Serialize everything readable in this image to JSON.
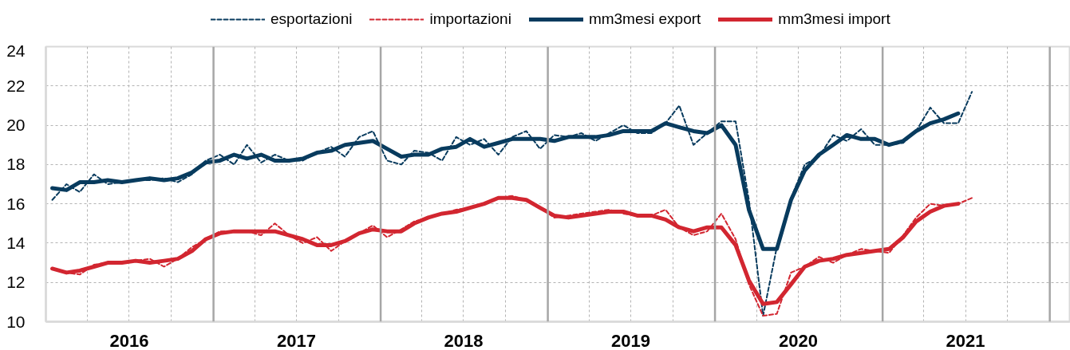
{
  "chart_data": {
    "type": "line",
    "x": [
      "2016-01-15",
      "2016-02-15",
      "2016-03-15",
      "2016-04-15",
      "2016-05-15",
      "2016-06-15",
      "2016-07-15",
      "2016-08-15",
      "2016-09-15",
      "2016-10-15",
      "2016-11-15",
      "2016-12-15",
      "2017-01-15",
      "2017-02-15",
      "2017-03-15",
      "2017-04-15",
      "2017-05-15",
      "2017-06-15",
      "2017-07-15",
      "2017-08-15",
      "2017-09-15",
      "2017-10-15",
      "2017-11-15",
      "2017-12-15",
      "2018-01-15",
      "2018-02-15",
      "2018-03-15",
      "2018-04-15",
      "2018-05-15",
      "2018-06-15",
      "2018-07-15",
      "2018-08-15",
      "2018-09-15",
      "2018-10-15",
      "2018-11-15",
      "2018-12-15",
      "2019-01-15",
      "2019-02-15",
      "2019-03-15",
      "2019-04-15",
      "2019-05-15",
      "2019-06-15",
      "2019-07-15",
      "2019-08-15",
      "2019-09-15",
      "2019-10-15",
      "2019-11-15",
      "2019-12-15",
      "2020-01-15",
      "2020-02-15",
      "2020-03-15",
      "2020-04-15",
      "2020-05-15",
      "2020-06-15",
      "2020-07-15",
      "2020-08-15",
      "2020-09-15",
      "2020-10-15",
      "2020-11-15",
      "2020-12-15",
      "2021-01-15",
      "2021-02-15",
      "2021-03-15",
      "2021-04-15",
      "2021-05-15",
      "2021-06-15",
      "2021-07-15"
    ],
    "series": [
      {
        "name": "esportazioni",
        "color": "#083b5e",
        "line_style": "dashed",
        "values": [
          16.2,
          17.0,
          16.6,
          17.5,
          17.0,
          17.1,
          17.2,
          17.2,
          17.3,
          17.1,
          17.5,
          18.2,
          18.5,
          18.0,
          19.0,
          18.1,
          18.5,
          18.2,
          18.2,
          18.6,
          18.9,
          18.4,
          19.4,
          19.7,
          18.2,
          18.0,
          18.7,
          18.6,
          18.2,
          19.4,
          19.0,
          19.3,
          18.5,
          19.4,
          19.7,
          18.8,
          19.5,
          19.4,
          19.6,
          19.2,
          19.6,
          20.0,
          19.6,
          19.6,
          20.1,
          21.0,
          19.0,
          19.6,
          20.2,
          20.2,
          16.2,
          10.3,
          13.8,
          16.3,
          18.0,
          18.4,
          19.5,
          19.2,
          19.8,
          19.0,
          19.0,
          19.1,
          19.7,
          20.9,
          20.1,
          20.1,
          21.7
        ]
      },
      {
        "name": "importazioni",
        "color": "#d22630",
        "line_style": "dashed",
        "values": [
          12.7,
          12.5,
          12.4,
          12.9,
          13.0,
          13.0,
          13.1,
          13.2,
          12.8,
          13.2,
          13.8,
          14.2,
          14.6,
          14.6,
          14.6,
          14.4,
          15.0,
          14.4,
          14.0,
          14.3,
          13.6,
          14.1,
          14.5,
          14.9,
          14.3,
          14.7,
          15.1,
          15.3,
          15.5,
          15.7,
          15.8,
          16.0,
          16.3,
          16.4,
          16.2,
          15.8,
          15.3,
          15.4,
          15.5,
          15.6,
          15.7,
          15.5,
          15.4,
          15.4,
          15.7,
          14.8,
          14.4,
          14.6,
          15.5,
          14.2,
          11.9,
          10.3,
          10.4,
          12.5,
          12.8,
          13.3,
          13.0,
          13.4,
          13.7,
          13.6,
          13.5,
          14.4,
          15.3,
          16.0,
          15.9,
          16.0,
          16.3
        ]
      },
      {
        "name": "mm3mesi export",
        "color": "#083b5e",
        "line_style": "solid",
        "values": [
          16.8,
          16.7,
          17.1,
          17.1,
          17.2,
          17.1,
          17.2,
          17.3,
          17.2,
          17.3,
          17.6,
          18.1,
          18.2,
          18.5,
          18.3,
          18.5,
          18.2,
          18.2,
          18.3,
          18.6,
          18.7,
          19.0,
          19.1,
          19.2,
          18.8,
          18.4,
          18.5,
          18.5,
          18.8,
          18.9,
          19.3,
          18.9,
          19.1,
          19.3,
          19.3,
          19.3,
          19.2,
          19.4,
          19.4,
          19.4,
          19.5,
          19.7,
          19.7,
          19.7,
          20.1,
          19.9,
          19.7,
          19.6,
          20.0,
          19.0,
          15.7,
          13.7,
          13.7,
          16.2,
          17.7,
          18.5,
          19.0,
          19.5,
          19.3,
          19.3,
          19.0,
          19.2,
          19.7,
          20.1,
          20.3,
          20.6,
          null
        ]
      },
      {
        "name": "mm3mesi import",
        "color": "#d22630",
        "line_style": "solid",
        "values": [
          12.7,
          12.5,
          12.6,
          12.8,
          13.0,
          13.0,
          13.1,
          13.0,
          13.1,
          13.2,
          13.6,
          14.2,
          14.5,
          14.6,
          14.6,
          14.6,
          14.6,
          14.4,
          14.2,
          13.9,
          13.9,
          14.1,
          14.5,
          14.7,
          14.6,
          14.6,
          15.0,
          15.3,
          15.5,
          15.6,
          15.8,
          16.0,
          16.3,
          16.3,
          16.2,
          15.8,
          15.4,
          15.3,
          15.4,
          15.5,
          15.6,
          15.6,
          15.4,
          15.4,
          15.2,
          14.8,
          14.6,
          14.8,
          14.8,
          13.9,
          12.1,
          10.9,
          11.0,
          11.9,
          12.8,
          13.1,
          13.2,
          13.4,
          13.5,
          13.6,
          13.7,
          14.3,
          15.1,
          15.6,
          15.9,
          16.0,
          null
        ]
      }
    ],
    "xlim": [
      "2016-01-01",
      "2022-02-15"
    ],
    "ylim": [
      10,
      24
    ],
    "xticks": [
      {
        "value": "2016-04-01",
        "label": null
      },
      {
        "value": "2016-07-01",
        "label": "2016"
      },
      {
        "value": "2016-10-01",
        "label": null
      },
      {
        "value": "2017-04-01",
        "label": null
      },
      {
        "value": "2017-07-01",
        "label": "2017"
      },
      {
        "value": "2017-10-01",
        "label": null
      },
      {
        "value": "2018-04-01",
        "label": null
      },
      {
        "value": "2018-07-01",
        "label": "2018"
      },
      {
        "value": "2018-10-01",
        "label": null
      },
      {
        "value": "2019-04-01",
        "label": null
      },
      {
        "value": "2019-07-01",
        "label": "2019"
      },
      {
        "value": "2019-10-01",
        "label": null
      },
      {
        "value": "2020-04-01",
        "label": null
      },
      {
        "value": "2020-07-01",
        "label": "2020"
      },
      {
        "value": "2020-10-01",
        "label": null
      },
      {
        "value": "2021-04-01",
        "label": null
      },
      {
        "value": "2021-07-01",
        "label": "2021"
      },
      {
        "value": "2021-10-01",
        "label": null
      }
    ],
    "yticks": [
      10,
      12,
      14,
      16,
      18,
      20,
      22,
      24
    ],
    "grid": true,
    "legend": "top",
    "ref_lines": [
      {
        "axis": "x",
        "value": "2017-01-01",
        "color": "#a6a6a6",
        "line_style": "solid"
      },
      {
        "axis": "x",
        "value": "2018-01-01",
        "color": "#a6a6a6",
        "line_style": "solid"
      },
      {
        "axis": "x",
        "value": "2019-01-01",
        "color": "#a6a6a6",
        "line_style": "solid"
      },
      {
        "axis": "x",
        "value": "2020-01-01",
        "color": "#a6a6a6",
        "line_style": "solid"
      },
      {
        "axis": "x",
        "value": "2021-01-01",
        "color": "#a6a6a6",
        "line_style": "solid"
      },
      {
        "axis": "x",
        "value": "2022-01-01",
        "color": "#a6a6a6",
        "line_style": "solid"
      }
    ]
  }
}
